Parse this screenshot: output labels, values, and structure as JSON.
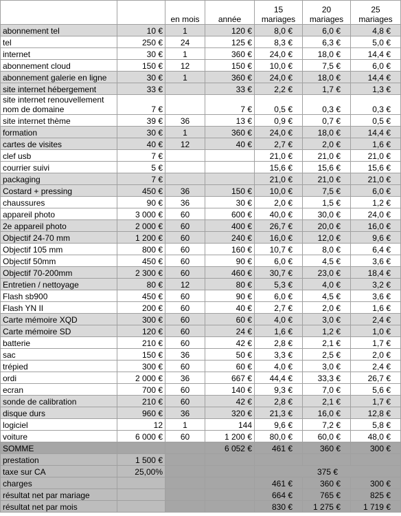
{
  "table": {
    "header": {
      "months": "en mois",
      "year": "année",
      "columns": [
        {
          "count": "15",
          "unit": "mariages"
        },
        {
          "count": "20",
          "unit": "mariages"
        },
        {
          "count": "25",
          "unit": "mariages"
        }
      ]
    },
    "rows": [
      {
        "label": "abonnement tel",
        "cells": [
          "10 €",
          "1",
          "120 €",
          "8,0 €",
          "6,0 €",
          "4,8 €"
        ],
        "highlight": true
      },
      {
        "label": "tel",
        "cells": [
          "250 €",
          "24",
          "125 €",
          "8,3 €",
          "6,3 €",
          "5,0 €"
        ],
        "highlight": false
      },
      {
        "label": "internet",
        "cells": [
          "30 €",
          "1",
          "360 €",
          "24,0 €",
          "18,0 €",
          "14,4 €"
        ],
        "highlight": false
      },
      {
        "label": "abonnement cloud",
        "cells": [
          "150 €",
          "12",
          "150 €",
          "10,0 €",
          "7,5 €",
          "6,0 €"
        ],
        "highlight": false
      },
      {
        "label": "abonnement galerie en ligne",
        "cells": [
          "30 €",
          "1",
          "360 €",
          "24,0 €",
          "18,0 €",
          "14,4 €"
        ],
        "highlight": true
      },
      {
        "label": "site internet hébergement",
        "cells": [
          "33 €",
          null,
          "33 €",
          "2,2 €",
          "1,7 €",
          "1,3 €"
        ],
        "highlight": true
      },
      {
        "label": "site internet renouvellement nom de domaine",
        "cells": [
          "7 €",
          null,
          "7 €",
          "0,5 €",
          "0,3 €",
          "0,3 €"
        ],
        "highlight": false
      },
      {
        "label": "site internet thème",
        "cells": [
          "39 €",
          "36",
          "13 €",
          "0,9 €",
          "0,7 €",
          "0,5 €"
        ],
        "highlight": false
      },
      {
        "label": "formation",
        "cells": [
          "30 €",
          "1",
          "360 €",
          "24,0 €",
          "18,0 €",
          "14,4 €"
        ],
        "highlight": true
      },
      {
        "label": "cartes de visites",
        "cells": [
          "40 €",
          "12",
          "40 €",
          "2,7 €",
          "2,0 €",
          "1,6 €"
        ],
        "highlight": true
      },
      {
        "label": "clef usb",
        "cells": [
          "7 €",
          null,
          null,
          "21,0 €",
          "21,0 €",
          "21,0 €"
        ],
        "highlight": false
      },
      {
        "label": "courrier suivi",
        "cells": [
          "5 €",
          null,
          null,
          "15,6 €",
          "15,6 €",
          "15,6 €"
        ],
        "highlight": false
      },
      {
        "label": "packaging",
        "cells": [
          "7 €",
          null,
          null,
          "21,0 €",
          "21,0 €",
          "21,0 €"
        ],
        "highlight": true
      },
      {
        "label": "Costard + pressing",
        "cells": [
          "450 €",
          "36",
          "150 €",
          "10,0 €",
          "7,5 €",
          "6,0 €"
        ],
        "highlight": true
      },
      {
        "label": "chaussures",
        "cells": [
          "90 €",
          "36",
          "30 €",
          "2,0 €",
          "1,5 €",
          "1,2 €"
        ],
        "highlight": false
      },
      {
        "label": "appareil photo",
        "cells": [
          "3 000 €",
          "60",
          "600 €",
          "40,0 €",
          "30,0 €",
          "24,0 €"
        ],
        "highlight": false
      },
      {
        "label": "2e appareil photo",
        "cells": [
          "2 000 €",
          "60",
          "400 €",
          "26,7 €",
          "20,0 €",
          "16,0 €"
        ],
        "highlight": true
      },
      {
        "label": "Objectif 24-70 mm",
        "cells": [
          "1 200 €",
          "60",
          "240 €",
          "16,0 €",
          "12,0 €",
          "9,6 €"
        ],
        "highlight": true
      },
      {
        "label": "Objectif 105 mm",
        "cells": [
          "800 €",
          "60",
          "160 €",
          "10,7 €",
          "8,0 €",
          "6,4 €"
        ],
        "highlight": false
      },
      {
        "label": "Objectif 50mm",
        "cells": [
          "450 €",
          "60",
          "90 €",
          "6,0 €",
          "4,5 €",
          "3,6 €"
        ],
        "highlight": false
      },
      {
        "label": "Objectif 70-200mm",
        "cells": [
          "2 300 €",
          "60",
          "460 €",
          "30,7 €",
          "23,0 €",
          "18,4 €"
        ],
        "highlight": true
      },
      {
        "label": "Entretien / nettoyage",
        "cells": [
          "80 €",
          "12",
          "80 €",
          "5,3 €",
          "4,0 €",
          "3,2 €"
        ],
        "highlight": true
      },
      {
        "label": "Flash sb900",
        "cells": [
          "450 €",
          "60",
          "90 €",
          "6,0 €",
          "4,5 €",
          "3,6 €"
        ],
        "highlight": false
      },
      {
        "label": "Flash YN II",
        "cells": [
          "200 €",
          "60",
          "40 €",
          "2,7 €",
          "2,0 €",
          "1,6 €"
        ],
        "highlight": false
      },
      {
        "label": "Carte mémoire XQD",
        "cells": [
          "300 €",
          "60",
          "60 €",
          "4,0 €",
          "3,0 €",
          "2,4 €"
        ],
        "highlight": true
      },
      {
        "label": "Carte mémoire SD",
        "cells": [
          "120 €",
          "60",
          "24 €",
          "1,6 €",
          "1,2 €",
          "1,0 €"
        ],
        "highlight": true
      },
      {
        "label": "batterie",
        "cells": [
          "210 €",
          "60",
          "42 €",
          "2,8 €",
          "2,1 €",
          "1,7 €"
        ],
        "highlight": false
      },
      {
        "label": "sac",
        "cells": [
          "150 €",
          "36",
          "50 €",
          "3,3 €",
          "2,5 €",
          "2,0 €"
        ],
        "highlight": false
      },
      {
        "label": "trépied",
        "cells": [
          "300 €",
          "60",
          "60 €",
          "4,0 €",
          "3,0 €",
          "2,4 €"
        ],
        "highlight": false
      },
      {
        "label": "ordi",
        "cells": [
          "2 000 €",
          "36",
          "667 €",
          "44,4 €",
          "33,3 €",
          "26,7 €"
        ],
        "highlight": false
      },
      {
        "label": "ecran",
        "cells": [
          "700 €",
          "60",
          "140 €",
          "9,3 €",
          "7,0 €",
          "5,6 €"
        ],
        "highlight": false
      },
      {
        "label": "sonde de calibration",
        "cells": [
          "210 €",
          "60",
          "42 €",
          "2,8 €",
          "2,1 €",
          "1,7 €"
        ],
        "highlight": true
      },
      {
        "label": "disque durs",
        "cells": [
          "960 €",
          "36",
          "320 €",
          "21,3 €",
          "16,0 €",
          "12,8 €"
        ],
        "highlight": true
      },
      {
        "label": "logiciel",
        "cells": [
          "12",
          "1",
          "144",
          "9,6 €",
          "7,2 €",
          "5,8 €"
        ],
        "highlight": false
      },
      {
        "label": "voiture",
        "cells": [
          "6 000 €",
          "60",
          "1 200 €",
          "80,0 €",
          "60,0 €",
          "48,0 €"
        ],
        "highlight": false
      }
    ],
    "summary": [
      {
        "label": "SOMME",
        "cells": [
          null,
          null,
          "6 052 €",
          "461 €",
          "360 €",
          "300 €"
        ]
      },
      {
        "label": "prestation",
        "cells": [
          "1 500 €",
          null,
          null,
          null,
          null,
          null
        ]
      },
      {
        "label": "taxe sur CA",
        "cells": [
          "25,00%",
          null,
          null
        ],
        "shared": "375 €"
      },
      {
        "label": "charges",
        "cells": [
          null,
          null,
          null,
          "461 €",
          "360 €",
          "300 €"
        ]
      },
      {
        "label": "résultat net par mariage",
        "cells": [
          null,
          null,
          null,
          "664 €",
          "765 €",
          "825 €"
        ]
      },
      {
        "label": "résultat net par mois",
        "cells": [
          null,
          null,
          null,
          "830 €",
          "1 275 €",
          "1 719 €"
        ]
      }
    ]
  }
}
